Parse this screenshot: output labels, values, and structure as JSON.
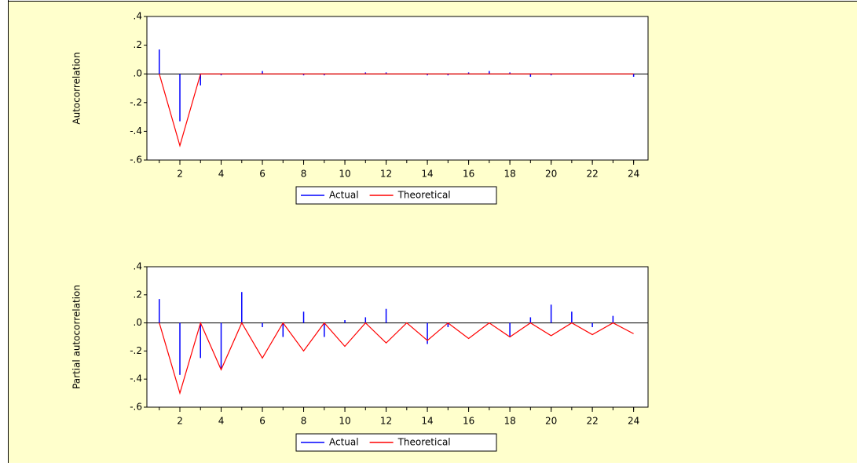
{
  "chart_data": [
    {
      "type": "bar",
      "ylabel": "Autocorrelation",
      "x": [
        1,
        2,
        3,
        4,
        5,
        6,
        7,
        8,
        9,
        10,
        11,
        12,
        13,
        14,
        15,
        16,
        17,
        18,
        19,
        20,
        21,
        22,
        23,
        24
      ],
      "series": [
        {
          "name": "Actual",
          "type": "bar",
          "color": "#0000ff",
          "values": [
            0.17,
            -0.33,
            -0.08,
            -0.01,
            0.0,
            0.02,
            0.0,
            -0.01,
            -0.01,
            0.0,
            0.01,
            0.01,
            0.0,
            -0.01,
            -0.01,
            0.01,
            0.02,
            0.01,
            -0.02,
            -0.01,
            0.0,
            0.0,
            0.0,
            -0.02
          ]
        },
        {
          "name": "Theoretical",
          "type": "line",
          "color": "#ff0000",
          "values": [
            0,
            -0.5,
            0,
            0,
            0,
            0,
            0,
            0,
            0,
            0,
            0,
            0,
            0,
            0,
            0,
            0,
            0,
            0,
            0,
            0,
            0,
            0,
            0,
            0
          ]
        }
      ],
      "xlim": [
        0.4,
        24.7
      ],
      "xticks": [
        2,
        4,
        6,
        8,
        10,
        12,
        14,
        16,
        18,
        20,
        22,
        24
      ],
      "ylim": [
        -0.6,
        0.4
      ],
      "yticks": [
        {
          "value": -0.6,
          "label": "-.6"
        },
        {
          "value": -0.4,
          "label": "-.4"
        },
        {
          "value": -0.2,
          "label": "-.2"
        },
        {
          "value": 0,
          "label": ".0"
        },
        {
          "value": 0.2,
          "label": ".2"
        },
        {
          "value": 0.4,
          "label": ".4"
        }
      ],
      "legend": "bottom"
    },
    {
      "type": "bar",
      "ylabel": "Partial autocorrelation",
      "x": [
        1,
        2,
        3,
        4,
        5,
        6,
        7,
        8,
        9,
        10,
        11,
        12,
        13,
        14,
        15,
        16,
        17,
        18,
        19,
        20,
        21,
        22,
        23,
        24
      ],
      "series": [
        {
          "name": "Actual",
          "type": "bar",
          "color": "#0000ff",
          "values": [
            0.17,
            -0.37,
            -0.25,
            -0.33,
            0.22,
            -0.03,
            -0.1,
            0.08,
            -0.1,
            0.02,
            0.04,
            0.1,
            0.0,
            -0.15,
            -0.03,
            0.0,
            0.0,
            -0.1,
            0.04,
            0.13,
            0.08,
            -0.03,
            0.05,
            0.0
          ]
        },
        {
          "name": "Theoretical",
          "type": "line",
          "color": "#ff0000",
          "values": [
            0,
            -0.5,
            0,
            -0.333,
            0,
            -0.25,
            0,
            -0.2,
            0,
            -0.167,
            0,
            -0.143,
            0,
            -0.125,
            0,
            -0.111,
            0,
            -0.1,
            0,
            -0.091,
            0,
            -0.083,
            0,
            -0.077
          ]
        }
      ],
      "xlim": [
        0.4,
        24.7
      ],
      "xticks": [
        2,
        4,
        6,
        8,
        10,
        12,
        14,
        16,
        18,
        20,
        22,
        24
      ],
      "ylim": [
        -0.6,
        0.4
      ],
      "yticks": [
        {
          "value": -0.6,
          "label": "-.6"
        },
        {
          "value": -0.4,
          "label": "-.4"
        },
        {
          "value": -0.2,
          "label": "-.2"
        },
        {
          "value": 0,
          "label": ".0"
        },
        {
          "value": 0.2,
          "label": ".2"
        },
        {
          "value": 0.4,
          "label": ".4"
        }
      ],
      "legend": "bottom"
    }
  ]
}
